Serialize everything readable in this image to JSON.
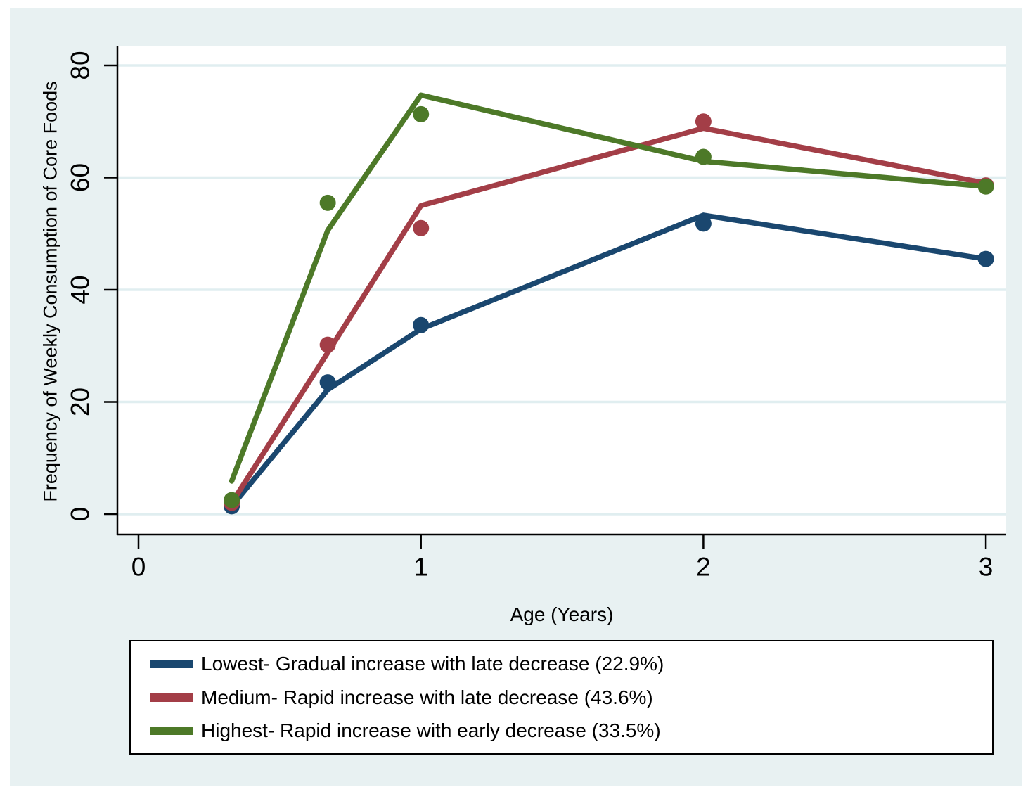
{
  "chart_data": {
    "type": "line",
    "title": "",
    "xlabel": "Age (Years)",
    "ylabel": "Frequency of Weekly Consumption of Core Foods",
    "x": [
      0.33,
      0.67,
      1,
      2,
      3
    ],
    "xticks": [
      0,
      1,
      2,
      3
    ],
    "yticks": [
      0,
      20,
      40,
      60,
      80
    ],
    "xlim": [
      -0.08,
      3.07
    ],
    "ylim": [
      -3.6,
      83.5
    ],
    "grid": "horizontal",
    "legend_position": "below-plot",
    "series": [
      {
        "name": "Lowest- Gradual increase with late decrease (22.9%)",
        "color": "#1a476f",
        "line_values": [
          1.4,
          22.2,
          33.0,
          53.3,
          45.5
        ],
        "marker_values": [
          1.4,
          23.5,
          33.7,
          51.8,
          45.5
        ]
      },
      {
        "name": "Medium- Rapid increase with late decrease (43.6%)",
        "color": "#a33e47",
        "line_values": [
          2.0,
          28.8,
          55.0,
          68.8,
          59.0
        ],
        "marker_values": [
          2.0,
          30.2,
          51.0,
          70.0,
          58.6
        ]
      },
      {
        "name": "Highest- Rapid increase with early decrease (33.5%)",
        "color": "#4d7928",
        "line_values": [
          5.9,
          50.6,
          74.7,
          62.9,
          58.4
        ],
        "marker_values": [
          2.5,
          55.5,
          71.3,
          63.7,
          58.4
        ]
      }
    ],
    "colors": {
      "graph_background": "#e8f1f2",
      "plot_background": "#ffffff",
      "gridline": "#e0eef0",
      "axis": "#000000",
      "tick_label": "#000000",
      "legend_border": "#000000",
      "legend_background": "#ffffff"
    }
  }
}
